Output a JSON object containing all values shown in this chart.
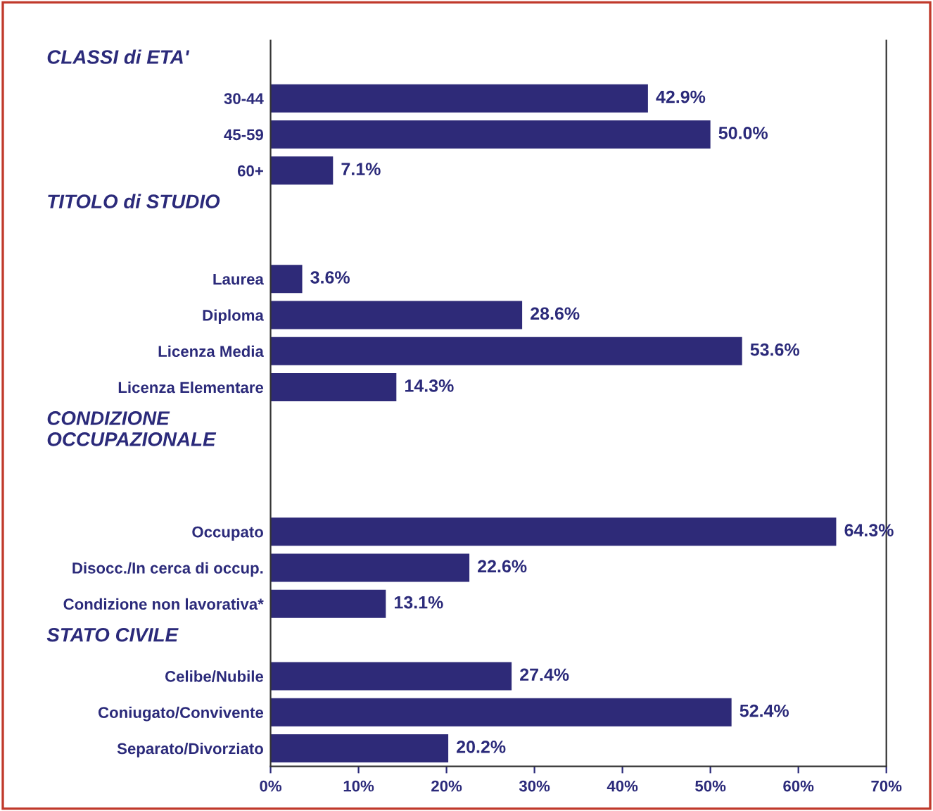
{
  "chart_data": {
    "type": "bar",
    "orientation": "horizontal",
    "categories": [
      null,
      "30-44",
      "45-59",
      "60+",
      null,
      null,
      "Laurea",
      "Diploma",
      "Licenza Media",
      "Licenza Elementare",
      null,
      null,
      null,
      "Occupato",
      "Disocc./In cerca di occup.",
      "Condizione non lavorativa*",
      null,
      "Celibe/Nubile",
      "Coniugato/Convivente",
      "Separato/Divorziato"
    ],
    "annotations": [
      "CLASSI di ETA'",
      "TITOLO di STUDIO",
      "CONDIZIONE\nOCCUPAZIONALE",
      "STATO CIVILE"
    ],
    "values": [
      null,
      42.9,
      50.0,
      7.1,
      null,
      null,
      3.6,
      28.6,
      53.6,
      14.3,
      null,
      null,
      null,
      64.3,
      22.6,
      13.1,
      null,
      27.4,
      52.4,
      20.2
    ],
    "value_labels": [
      null,
      "42.9%",
      "50.0%",
      "7.1%",
      null,
      null,
      "3.6%",
      "28.6%",
      "53.6%",
      "14.3%",
      null,
      null,
      null,
      "64.3%",
      "22.6%",
      "13.1%",
      null,
      "27.4%",
      "52.4%",
      "20.2%"
    ],
    "color": "#2e2a78",
    "xlim": [
      0,
      70
    ],
    "xticks": [
      {
        "value": 0,
        "label": "0%"
      },
      {
        "value": 10,
        "label": "10%"
      },
      {
        "value": 20,
        "label": "20%"
      },
      {
        "value": 30,
        "label": "30%"
      },
      {
        "value": 40,
        "label": "40%"
      },
      {
        "value": 50,
        "label": "50%"
      },
      {
        "value": 60,
        "label": "60%"
      },
      {
        "value": 70,
        "label": "70%"
      }
    ],
    "grid": false
  }
}
